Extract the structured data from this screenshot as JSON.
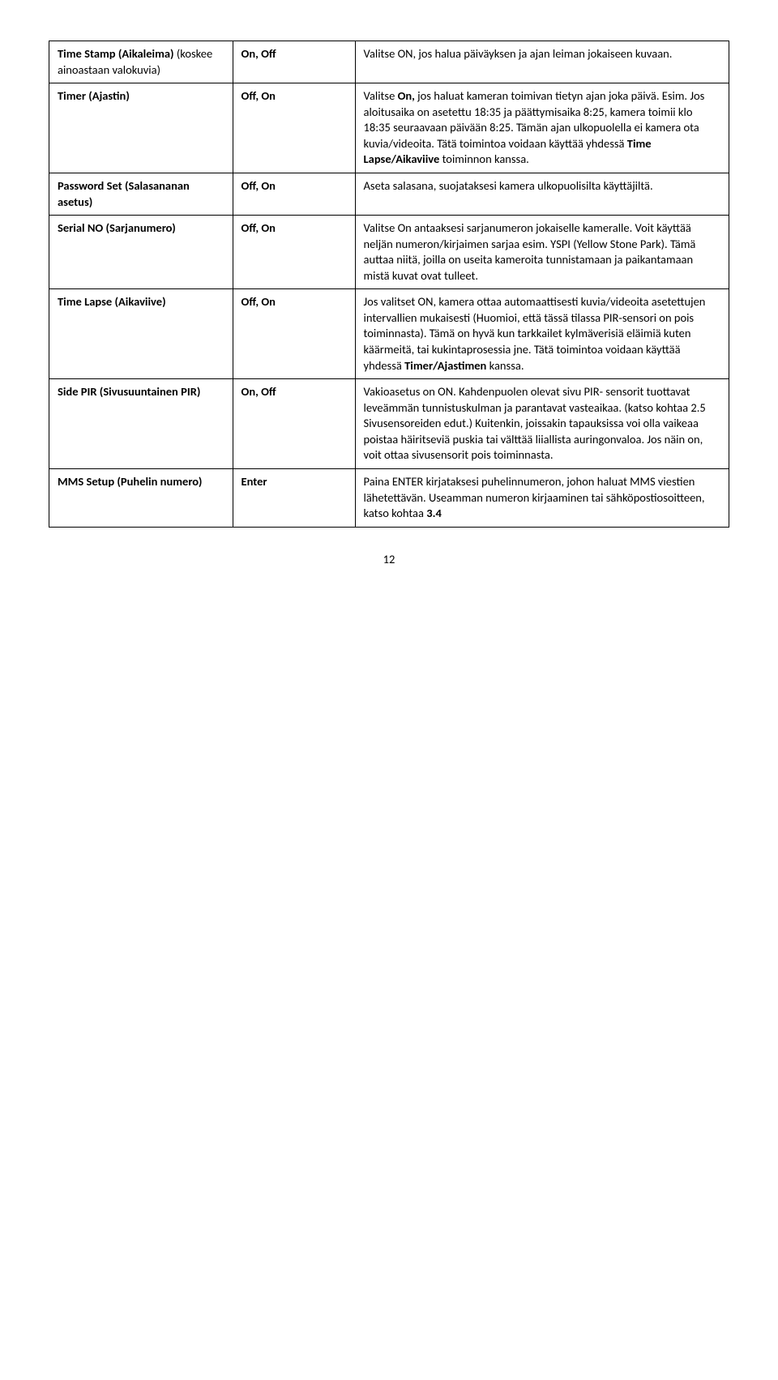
{
  "rows": [
    {
      "param_bold": "Time Stamp (Aikaleima)",
      "param_rest": " (koskee ainoastaan valokuvia)",
      "options": "On, Off",
      "desc_parts": [
        {
          "text": "Valitse ON, jos halua päiväyksen ja ajan leiman jokaiseen kuvaan.",
          "bold": false
        }
      ]
    },
    {
      "param_bold": "Timer (Ajastin)",
      "param_rest": "",
      "options": "Off, On",
      "desc_parts": [
        {
          "text": "Valitse ",
          "bold": false
        },
        {
          "text": "On,",
          "bold": true
        },
        {
          "text": " jos haluat kameran toimivan tietyn ajan joka päivä. Esim. Jos aloitusaika on asetettu 18:35 ja päättymisaika 8:25, kamera toimii klo 18:35 seuraavaan päivään 8:25. Tämän ajan ulkopuolella ei kamera ota kuvia/videoita. Tätä toimintoa voidaan käyttää yhdessä ",
          "bold": false
        },
        {
          "text": "Time Lapse/Aikaviive",
          "bold": true
        },
        {
          "text": " toiminnon kanssa.",
          "bold": false
        }
      ]
    },
    {
      "param_bold": "Password Set (Salasananan asetus)",
      "param_rest": "",
      "options": "Off, On",
      "desc_parts": [
        {
          "text": "Aseta salasana, suojataksesi kamera ulkopuolisilta käyttäjiltä.",
          "bold": false
        }
      ]
    },
    {
      "param_bold": "Serial NO (Sarjanumero)",
      "param_rest": "",
      "options": "Off, On",
      "desc_parts": [
        {
          "text": "Valitse On antaaksesi sarjanumeron jokaiselle kameralle. Voit käyttää neljän numeron/kirjaimen sarjaa esim. YSPI (Yellow Stone Park). Tämä auttaa niitä, joilla on useita kameroita tunnistamaan ja paikantamaan mistä kuvat ovat tulleet.",
          "bold": false
        }
      ]
    },
    {
      "param_bold": "Time Lapse (Aikaviive)",
      "param_rest": "",
      "options": "Off, On",
      "desc_parts": [
        {
          "text": "Jos valitset ON, kamera ottaa automaattisesti kuvia/videoita asetettujen intervallien mukaisesti (Huomioi, että tässä tilassa PIR-sensori on pois toiminnasta). Tämä on hyvä kun tarkkailet kylmäverisiä eläimiä kuten käärmeitä, tai kukintaprosessia jne. Tätä toimintoa voidaan käyttää yhdessä ",
          "bold": false
        },
        {
          "text": "Timer/Ajastimen",
          "bold": true
        },
        {
          "text": " kanssa.",
          "bold": false
        }
      ]
    },
    {
      "param_bold": "Side PIR (Sivusuuntainen PIR)",
      "param_rest": "",
      "options": "On, Off",
      "desc_parts": [
        {
          "text": "Vakioasetus on ON. Kahdenpuolen olevat sivu PIR- sensorit tuottavat leveämmän tunnistuskulman ja parantavat vasteaikaa. (katso kohtaa 2.5 Sivusensoreiden edut.) Kuitenkin, joissakin tapauksissa voi olla vaikeaa poistaa häiritseviä puskia tai välttää liiallista auringonvaloa. Jos näin on, voit ottaa sivusensorit pois toiminnasta.",
          "bold": false
        }
      ]
    },
    {
      "param_bold": "MMS Setup (Puhelin numero)",
      "param_rest": "",
      "options": "Enter",
      "desc_parts": [
        {
          "text": "Paina ENTER kirjataksesi puhelinnumeron, johon haluat MMS viestien lähetettävän. Useamman numeron kirjaaminen tai sähköpostiosoitteen, katso kohtaa ",
          "bold": false
        },
        {
          "text": "3.4",
          "bold": true
        }
      ]
    }
  ],
  "page_number": "12"
}
